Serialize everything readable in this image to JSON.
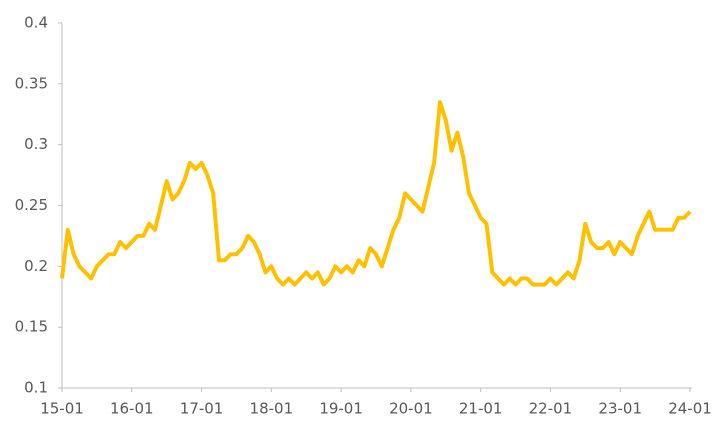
{
  "chart_data": {
    "type": "line",
    "x": [
      "15-01",
      "15-02",
      "15-03",
      "15-04",
      "15-05",
      "15-06",
      "15-07",
      "15-08",
      "15-09",
      "15-10",
      "15-11",
      "15-12",
      "16-01",
      "16-02",
      "16-03",
      "16-04",
      "16-05",
      "16-06",
      "16-07",
      "16-08",
      "16-09",
      "16-10",
      "16-11",
      "16-12",
      "17-01",
      "17-02",
      "17-03",
      "17-04",
      "17-05",
      "17-06",
      "17-07",
      "17-08",
      "17-09",
      "17-10",
      "17-11",
      "17-12",
      "18-01",
      "18-02",
      "18-03",
      "18-04",
      "18-05",
      "18-06",
      "18-07",
      "18-08",
      "18-09",
      "18-10",
      "18-11",
      "18-12",
      "19-01",
      "19-02",
      "19-03",
      "19-04",
      "19-05",
      "19-06",
      "19-07",
      "19-08",
      "19-09",
      "19-10",
      "19-11",
      "19-12",
      "20-01",
      "20-02",
      "20-03",
      "20-04",
      "20-05",
      "20-06",
      "20-07",
      "20-08",
      "20-09",
      "20-10",
      "20-11",
      "20-12",
      "21-01",
      "21-02",
      "21-03",
      "21-04",
      "21-05",
      "21-06",
      "21-07",
      "21-08",
      "21-09",
      "21-10",
      "21-11",
      "21-12",
      "22-01",
      "22-02",
      "22-03",
      "22-04",
      "22-05",
      "22-06",
      "22-07",
      "22-08",
      "22-09",
      "22-10",
      "22-11",
      "22-12",
      "23-01",
      "23-02",
      "23-03",
      "23-04",
      "23-05",
      "23-06",
      "23-07",
      "23-08",
      "23-09",
      "23-10",
      "23-11",
      "23-12",
      "24-01"
    ],
    "series": [
      {
        "color": "#FFC000",
        "values": [
          0.19,
          0.23,
          0.21,
          0.2,
          0.195,
          0.19,
          0.2,
          0.205,
          0.21,
          0.21,
          0.22,
          0.215,
          0.22,
          0.225,
          0.225,
          0.235,
          0.23,
          0.25,
          0.27,
          0.255,
          0.26,
          0.27,
          0.285,
          0.28,
          0.285,
          0.275,
          0.26,
          0.205,
          0.205,
          0.21,
          0.21,
          0.215,
          0.225,
          0.22,
          0.21,
          0.195,
          0.2,
          0.19,
          0.185,
          0.19,
          0.185,
          0.19,
          0.195,
          0.19,
          0.195,
          0.185,
          0.19,
          0.2,
          0.195,
          0.2,
          0.195,
          0.205,
          0.2,
          0.215,
          0.21,
          0.2,
          0.215,
          0.23,
          0.24,
          0.26,
          0.255,
          0.25,
          0.245,
          0.265,
          0.285,
          0.335,
          0.32,
          0.295,
          0.31,
          0.29,
          0.26,
          0.25,
          0.24,
          0.235,
          0.195,
          0.19,
          0.185,
          0.19,
          0.185,
          0.19,
          0.19,
          0.185,
          0.185,
          0.185,
          0.19,
          0.185,
          0.19,
          0.195,
          0.19,
          0.205,
          0.235,
          0.22,
          0.215,
          0.215,
          0.22,
          0.21,
          0.22,
          0.215,
          0.21,
          0.225,
          0.235,
          0.245,
          0.23,
          0.23,
          0.23,
          0.23,
          0.24,
          0.24,
          0.245
        ]
      }
    ],
    "ylim": [
      0.1,
      0.4
    ],
    "yticks": [
      0.1,
      0.15,
      0.2,
      0.25,
      0.3,
      0.35,
      0.4
    ],
    "xticks": [
      "15-01",
      "16-01",
      "17-01",
      "18-01",
      "19-01",
      "20-01",
      "21-01",
      "22-01",
      "23-01",
      "24-01"
    ],
    "grid": false
  }
}
